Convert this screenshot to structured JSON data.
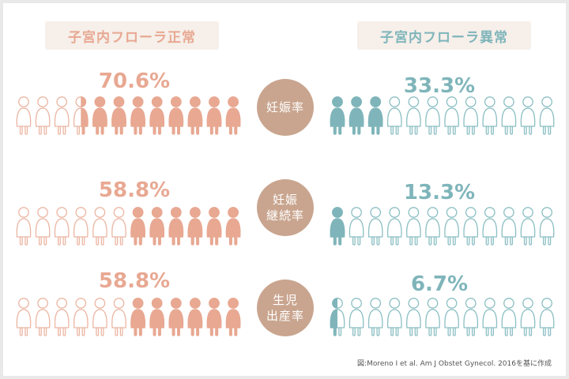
{
  "colors": {
    "normal_fill": "#e8a892",
    "normal_outline": "#ebb6a3",
    "abnormal_fill": "#7fb5ba",
    "abnormal_outline": "#8cbfc3",
    "metric_circle": "#c9a58f",
    "header_bg": "#f6efea"
  },
  "headers": {
    "normal": "子宮内フローラ正常",
    "abnormal": "子宮内フローラ異常"
  },
  "source": "図:Moreno I et al. Am J Obstet Gynecol. 2016を基に作成",
  "chart_data": {
    "type": "pictogram",
    "icons_per_group": 12,
    "groups": [
      "子宮内フローラ正常",
      "子宮内フローラ異常"
    ],
    "rows": [
      {
        "metric": "妊娠率",
        "normal": {
          "label": "70.6%",
          "value": 70.6,
          "filled_icons": 8.5
        },
        "abnormal": {
          "label": "33.3%",
          "value": 33.3,
          "filled_icons": 3
        }
      },
      {
        "metric": "妊娠\n継続率",
        "normal": {
          "label": "58.8%",
          "value": 58.8,
          "filled_icons": 6
        },
        "abnormal": {
          "label": "13.3%",
          "value": 13.3,
          "filled_icons": 1
        }
      },
      {
        "metric": "生児\n出産率",
        "normal": {
          "label": "58.8%",
          "value": 58.8,
          "filled_icons": 6
        },
        "abnormal": {
          "label": "6.7%",
          "value": 6.7,
          "filled_icons": 0.5
        }
      }
    ]
  }
}
